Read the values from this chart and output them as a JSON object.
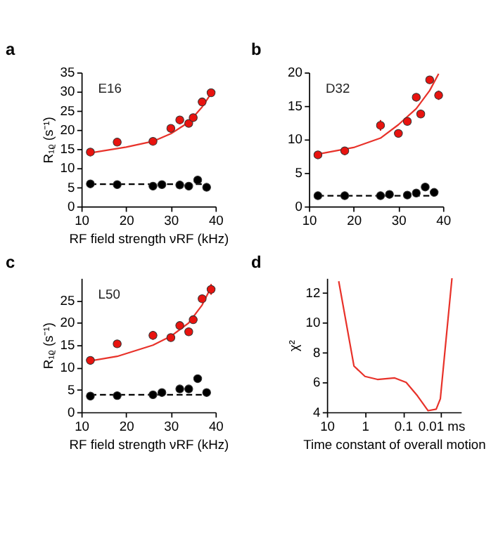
{
  "chart_data": [
    {
      "type": "scatter",
      "title": "a",
      "xlabel": "RF field strength νRF (kHz)",
      "ylabel": "R₁ᵨ (s⁻¹)",
      "annotations": [
        "E16"
      ],
      "xlim": [
        10,
        40
      ],
      "xticks": [
        10,
        20,
        30,
        40
      ],
      "ylim": [
        0,
        35
      ],
      "yticks": [
        0,
        5,
        10,
        15,
        20,
        25,
        30,
        35
      ],
      "grid": false,
      "marker": "circle",
      "series": [
        {
          "type": "line",
          "color": "#e8322a",
          "line_style": "solid",
          "marker": "none",
          "x": [
            12,
            20,
            26,
            30,
            34,
            37,
            39
          ],
          "values": [
            14,
            15.5,
            17,
            19,
            22,
            26,
            29.5
          ]
        },
        {
          "type": "line",
          "color": "#000000",
          "line_style": "dashed",
          "marker": "none",
          "x": [
            12,
            38
          ],
          "values": [
            5.8,
            5.8
          ]
        },
        {
          "type": "scatter",
          "color": "#e8130f",
          "x": [
            12,
            18,
            26,
            30,
            32,
            34,
            35,
            37,
            39
          ],
          "values": [
            14.2,
            16.8,
            17,
            20.4,
            22.6,
            21.7,
            23.2,
            27.3,
            29.7
          ]
        },
        {
          "type": "scatter",
          "color": "#000000",
          "x": [
            12,
            18,
            26,
            28,
            32,
            34,
            36,
            38
          ],
          "values": [
            5.9,
            5.7,
            5.3,
            5.7,
            5.6,
            5.3,
            6.9,
            5.0
          ]
        }
      ]
    },
    {
      "type": "scatter",
      "title": "b",
      "annotations": [
        "D32"
      ],
      "xlim": [
        10,
        40
      ],
      "xticks": [
        10,
        20,
        30,
        40
      ],
      "ylim": [
        0,
        20
      ],
      "yticks": [
        0,
        5,
        10,
        15,
        20
      ],
      "grid": false,
      "marker": "circle",
      "series": [
        {
          "type": "line",
          "color": "#e8322a",
          "line_style": "solid",
          "marker": "none",
          "x": [
            12,
            20,
            26,
            30,
            34,
            37,
            39
          ],
          "values": [
            7.8,
            8.8,
            10.2,
            12.2,
            14.6,
            17.3,
            19.8
          ]
        },
        {
          "type": "line",
          "color": "#000000",
          "line_style": "dashed",
          "marker": "none",
          "x": [
            12,
            38
          ],
          "values": [
            1.6,
            1.6
          ]
        },
        {
          "type": "scatter",
          "color": "#e8130f",
          "x": [
            12,
            18,
            26,
            30,
            32,
            34,
            35,
            37,
            39
          ],
          "values": [
            7.7,
            8.3,
            12.1,
            10.9,
            12.7,
            16.3,
            13.8,
            18.9,
            16.6
          ],
          "errors": [
            null,
            0.6,
            0.8,
            0.6,
            null,
            0.5,
            0.6,
            0.5,
            0.7
          ]
        },
        {
          "type": "scatter",
          "color": "#000000",
          "x": [
            12,
            18,
            26,
            28,
            32,
            34,
            36,
            38
          ],
          "values": [
            1.6,
            1.6,
            1.6,
            1.8,
            1.7,
            2.0,
            2.9,
            2.1
          ],
          "errors": [
            null,
            null,
            null,
            null,
            null,
            null,
            null,
            0.6
          ]
        }
      ]
    },
    {
      "type": "scatter",
      "title": "c",
      "xlabel": "RF field strength νRF (kHz)",
      "ylabel": "R₁ᵨ (s⁻¹)",
      "annotations": [
        "L50"
      ],
      "xlim": [
        10,
        40
      ],
      "xticks": [
        10,
        20,
        30,
        40
      ],
      "ylim": [
        0,
        30
      ],
      "yticks": [
        0,
        5,
        10,
        15,
        20,
        25
      ],
      "grid": false,
      "marker": "circle",
      "series": [
        {
          "type": "line",
          "color": "#e8322a",
          "line_style": "solid",
          "marker": "none",
          "x": [
            12,
            18,
            26,
            30,
            34,
            37,
            39
          ],
          "values": [
            11.5,
            12.5,
            15,
            17,
            20,
            24,
            28
          ]
        },
        {
          "type": "line",
          "color": "#000000",
          "line_style": "dashed",
          "marker": "none",
          "x": [
            12,
            38
          ],
          "values": [
            3.9,
            3.9
          ]
        },
        {
          "type": "scatter",
          "color": "#e8130f",
          "x": [
            12,
            18,
            26,
            30,
            32,
            34,
            35,
            37,
            39
          ],
          "values": [
            11.6,
            15.3,
            17.2,
            16.7,
            19.4,
            18.0,
            20.7,
            25.4,
            27.5
          ],
          "errors": [
            null,
            null,
            1.0,
            null,
            null,
            null,
            null,
            null,
            1.2
          ]
        },
        {
          "type": "scatter",
          "color": "#000000",
          "x": [
            12,
            18,
            26,
            28,
            32,
            34,
            36,
            38
          ],
          "values": [
            3.6,
            3.7,
            3.9,
            4.4,
            5.2,
            5.2,
            7.5,
            4.4
          ]
        }
      ]
    },
    {
      "type": "line",
      "title": "d",
      "xlabel": "Time constant of overall motion",
      "ylabel": "χ²",
      "log": "x",
      "xlim": [
        10,
        0.003
      ],
      "xticks": [
        10,
        1,
        0.1,
        {
          "value": 0.01,
          "label": "0.01 ms"
        }
      ],
      "ylim": [
        4,
        13
      ],
      "yticks": [
        4,
        6,
        8,
        10,
        12
      ],
      "grid": false,
      "marker": "none",
      "line_style": "solid",
      "series": [
        {
          "color": "#e8322a",
          "x": [
            4.9,
            1.95,
            1,
            0.47,
            0.166,
            0.083,
            0.042,
            0.022,
            0.0135,
            0.0105,
            0.0052
          ],
          "values": [
            12.8,
            7.1,
            6.4,
            6.2,
            6.3,
            6.0,
            5.1,
            4.1,
            4.2,
            4.9,
            13.0
          ]
        }
      ]
    }
  ]
}
